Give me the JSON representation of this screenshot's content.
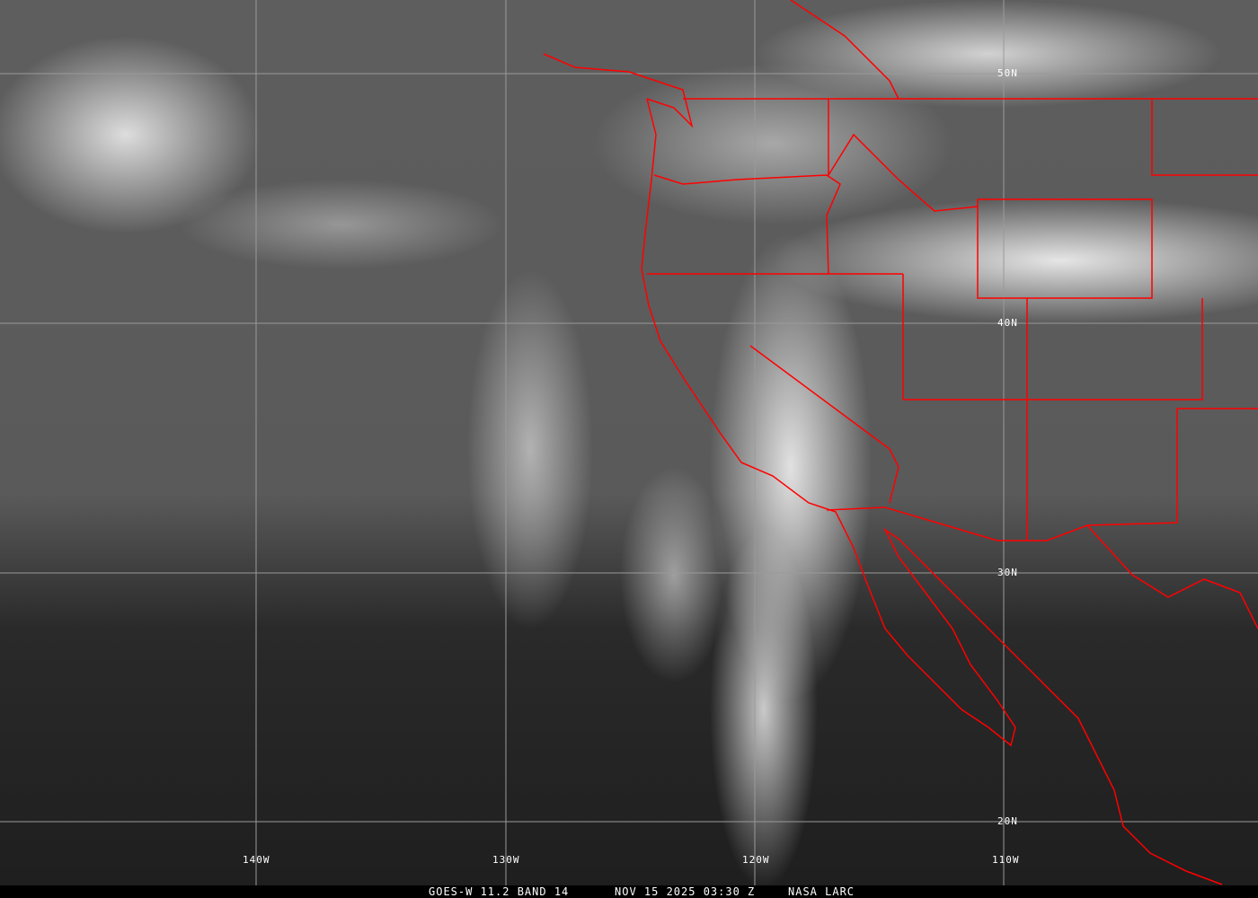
{
  "grid": {
    "latitudes": [
      "50N",
      "40N",
      "30N",
      "20N"
    ],
    "longitudes": [
      "140W",
      "130W",
      "120W",
      "110W"
    ]
  },
  "caption": {
    "satellite": "GOES-W 11.2 BAND 14",
    "datetime": "NOV 15 2025 03:30 Z",
    "source": "NASA LARC"
  },
  "colors": {
    "boundaries": "#ff0000",
    "grid": "#9a9a9a"
  }
}
